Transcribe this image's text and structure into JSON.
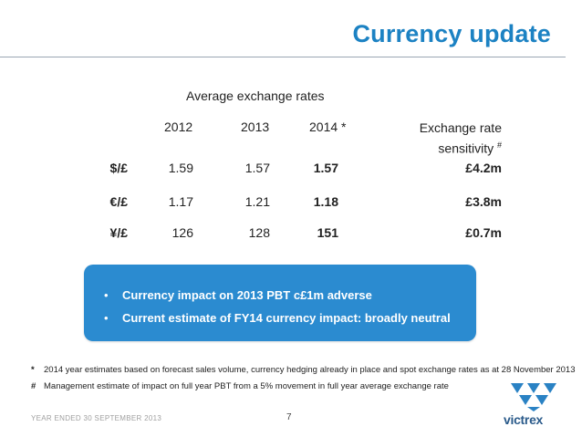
{
  "slide": {
    "title": "Currency update"
  },
  "table": {
    "heading": "Average exchange rates",
    "columns": {
      "y2012": "2012",
      "y2013": "2013",
      "y2014": "2014 *",
      "sensitivity_line1": "Exchange rate",
      "sensitivity_line2": "sensitivity",
      "sensitivity_mark": "#"
    },
    "rows": [
      {
        "label": "$/£",
        "y2012": "1.59",
        "y2013": "1.57",
        "y2014": "1.57",
        "sensitivity": "£4.2m"
      },
      {
        "label": "€/£",
        "y2012": "1.17",
        "y2013": "1.21",
        "y2014": "1.18",
        "sensitivity": "£3.8m"
      },
      {
        "label": "¥/£",
        "y2012": "126",
        "y2013": "128",
        "y2014": "151",
        "sensitivity": "£0.7m"
      }
    ]
  },
  "callout": {
    "bullet": "•",
    "items": [
      "Currency impact on 2013 PBT c£1m adverse",
      "Current estimate of FY14 currency impact: broadly neutral"
    ]
  },
  "footnotes": [
    {
      "mark": "*",
      "text": "2014 year estimates based on forecast sales volume, currency hedging already in place and spot exchange rates as at 28 November 2013"
    },
    {
      "mark": "#",
      "text": "Management estimate of impact on full year PBT from a 5% movement in full year average exchange rate"
    }
  ],
  "footer": {
    "period": "YEAR ENDED 30 SEPTEMBER 2013",
    "page_number": "7",
    "logo_text": "victrex"
  },
  "colors": {
    "title": "#1c82c3",
    "callout_background": "#2b8bd0",
    "logo": "#2a5a8a"
  },
  "icons": {
    "logo": "victrex-triangle-logo-icon"
  }
}
